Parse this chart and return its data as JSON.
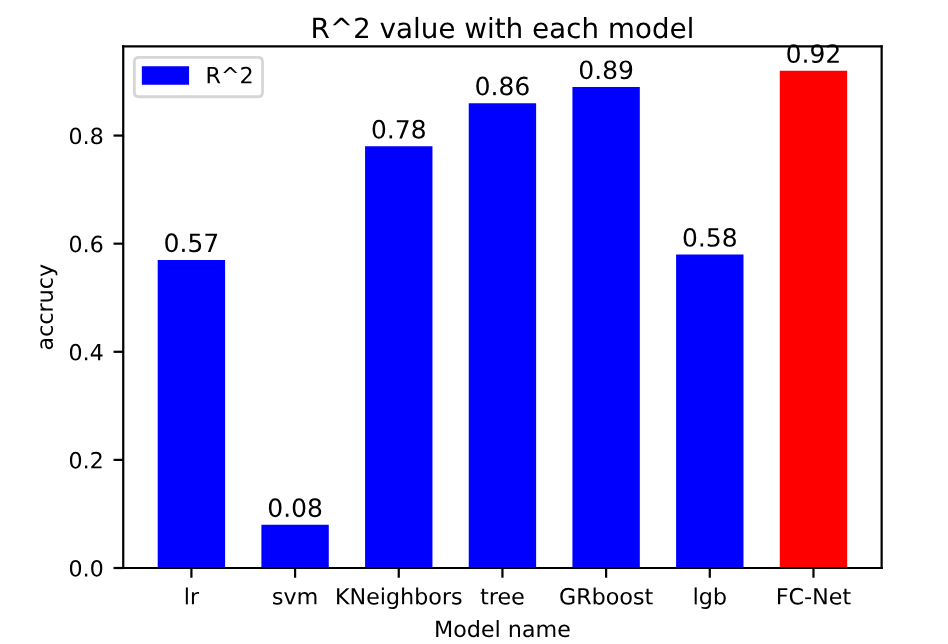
{
  "chart_data": {
    "type": "bar",
    "title": "R^2 value with each model",
    "xlabel": "Model name",
    "ylabel": "accrucy",
    "categories": [
      "lr",
      "svm",
      "KNeighbors",
      "tree",
      "GRboost",
      "lgb",
      "FC-Net"
    ],
    "series": [
      {
        "name": "R^2",
        "color": "#0000ff",
        "colors": [
          "#0000ff",
          "#0000ff",
          "#0000ff",
          "#0000ff",
          "#0000ff",
          "#0000ff",
          "#ff0000"
        ],
        "values": [
          0.57,
          0.08,
          0.78,
          0.86,
          0.89,
          0.58,
          0.92
        ]
      }
    ],
    "ylim": [
      0,
      0.965
    ],
    "yticks": [
      {
        "value": 0,
        "label": "0.0"
      },
      {
        "value": 0.2,
        "label": "0.2"
      },
      {
        "value": 0.4,
        "label": "0.4"
      },
      {
        "value": 0.6,
        "label": "0.6"
      },
      {
        "value": 0.8,
        "label": "0.8"
      }
    ],
    "data_labels": true,
    "legend": "top left",
    "grid": false
  }
}
